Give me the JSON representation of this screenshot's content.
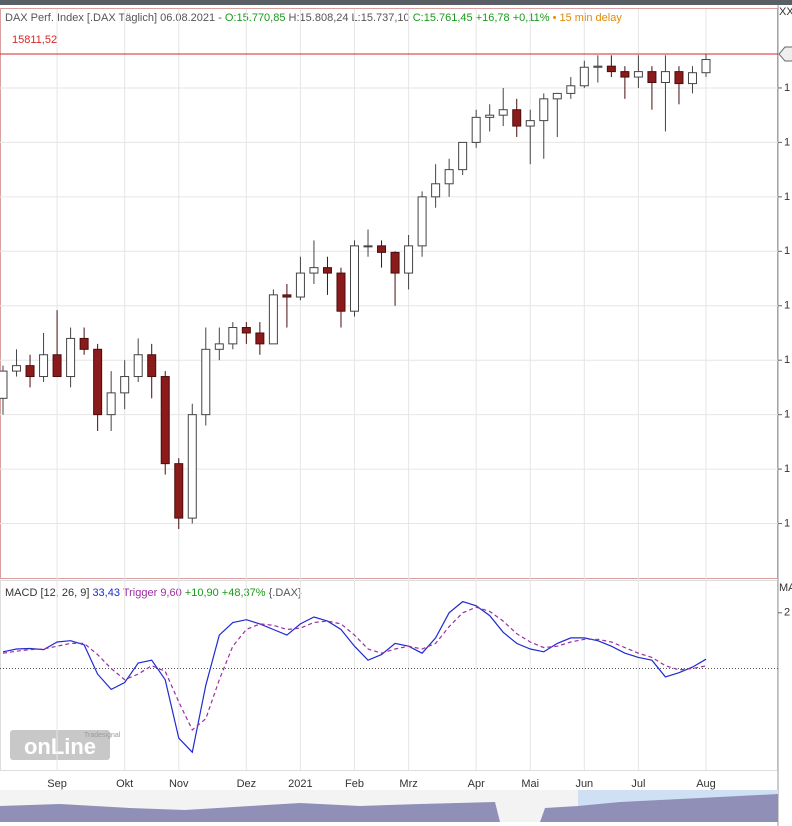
{
  "header": {
    "title": "DAX Perf. Index [.DAX Täglich] 06.08.2021 -",
    "open": "O:15.770,85",
    "high_low": "H:15.808,24 L:15.737,10",
    "close": "C:15.761,45 +16,78 +0,11%",
    "delay": "• 15 min delay",
    "corner": "XX",
    "corner2": "MA"
  },
  "logo": {
    "brand": "Tradesignal",
    "name": "onLine"
  },
  "chart_data": [
    {
      "type": "candlestick",
      "categories": [
        null,
        null,
        null,
        null,
        "Sep",
        null,
        null,
        null,
        null,
        "Okt",
        null,
        null,
        null,
        "Nov",
        null,
        null,
        null,
        null,
        "Dez",
        null,
        null,
        null,
        "2021",
        null,
        null,
        null,
        "Feb",
        null,
        null,
        null,
        "Mrz",
        null,
        null,
        null,
        null,
        "Apr",
        null,
        null,
        null,
        "Mai",
        null,
        null,
        null,
        "Jun",
        null,
        null,
        null,
        "Jul",
        null,
        null,
        null,
        null,
        "Aug"
      ],
      "open": [
        12650,
        12900,
        12950,
        12850,
        13050,
        12850,
        13200,
        13100,
        12500,
        12700,
        12850,
        13050,
        12850,
        12050,
        11550,
        12500,
        13100,
        13150,
        13300,
        13250,
        13150,
        13600,
        13580,
        13800,
        13850,
        13800,
        13450,
        14050,
        14050,
        13990,
        13800,
        14050,
        14500,
        14620,
        14750,
        15000,
        15230,
        15250,
        15300,
        15150,
        15200,
        15400,
        15450,
        15520,
        15690,
        15700,
        15650,
        15600,
        15650,
        15550,
        15650,
        15540,
        15640
      ],
      "high": [
        12950,
        13100,
        13050,
        13250,
        13460,
        13300,
        13300,
        13150,
        12900,
        13000,
        13200,
        13150,
        12900,
        12100,
        12600,
        13300,
        13300,
        13350,
        13350,
        13350,
        13650,
        13700,
        13950,
        14100,
        13950,
        13850,
        14100,
        14200,
        14100,
        14000,
        14150,
        14550,
        14800,
        14850,
        15000,
        15300,
        15350,
        15500,
        15400,
        15300,
        15450,
        15450,
        15600,
        15750,
        15800,
        15800,
        15700,
        15800,
        15700,
        15800,
        15700,
        15700,
        15810
      ],
      "low": [
        12500,
        12850,
        12750,
        12800,
        12900,
        12750,
        13050,
        12350,
        12350,
        12550,
        12800,
        12650,
        11950,
        11450,
        11500,
        12400,
        13000,
        13100,
        13150,
        13050,
        13150,
        13300,
        13550,
        13700,
        13600,
        13300,
        13400,
        13950,
        13850,
        13500,
        13650,
        13950,
        14400,
        14500,
        14700,
        14950,
        15100,
        15150,
        15050,
        14800,
        14850,
        15050,
        15400,
        15500,
        15550,
        15600,
        15400,
        15500,
        15300,
        15100,
        15350,
        15450,
        15600
      ],
      "close": [
        12900,
        12950,
        12850,
        13050,
        12850,
        13200,
        13100,
        12500,
        12700,
        12850,
        13050,
        12850,
        12050,
        11550,
        12500,
        13100,
        13150,
        13300,
        13250,
        13150,
        13600,
        13580,
        13800,
        13850,
        13800,
        13450,
        14050,
        14050,
        13990,
        13800,
        14050,
        14500,
        14620,
        14750,
        15000,
        15230,
        15250,
        15300,
        15150,
        15200,
        15400,
        15450,
        15520,
        15690,
        15700,
        15650,
        15600,
        15650,
        15550,
        15650,
        15540,
        15640,
        15761
      ],
      "up_color": "#ffffff",
      "down_color": "#8b1a1a",
      "ylim": [
        11000,
        16225
      ],
      "yticks": [
        {
          "value": 11500,
          "label": "1"
        },
        {
          "value": 12000,
          "label": "1"
        },
        {
          "value": 12500,
          "label": "1"
        },
        {
          "value": 13000,
          "label": "1"
        },
        {
          "value": 13500,
          "label": "1"
        },
        {
          "value": 14000,
          "label": "1"
        },
        {
          "value": 14500,
          "label": "1"
        },
        {
          "value": 15000,
          "label": "1"
        },
        {
          "value": 15500,
          "label": "1"
        }
      ],
      "grid": true,
      "price_line": {
        "value": 15811.52,
        "label": "15811,52",
        "color": "#d62728"
      }
    },
    {
      "type": "line",
      "legend": [
        "MACD [12, 26, 9]",
        "33,43",
        "Trigger 9,60",
        "+10,90 +48,37%",
        "{.DAX}"
      ],
      "series": [
        {
          "color": "#1f2bd0",
          "dash": false,
          "values": [
            60,
            70,
            72,
            68,
            95,
            100,
            85,
            -20,
            -75,
            -50,
            20,
            30,
            -40,
            -250,
            -300,
            -60,
            120,
            165,
            175,
            160,
            140,
            120,
            160,
            185,
            170,
            140,
            80,
            30,
            50,
            90,
            80,
            55,
            110,
            200,
            240,
            225,
            190,
            130,
            90,
            70,
            60,
            90,
            110,
            110,
            100,
            80,
            55,
            40,
            30,
            -30,
            -15,
            5,
            33.43
          ]
        },
        {
          "color": "#9b2fa3",
          "dash": true,
          "values": [
            55,
            62,
            68,
            70,
            80,
            90,
            90,
            50,
            0,
            -40,
            -20,
            10,
            -10,
            -120,
            -220,
            -180,
            -40,
            80,
            140,
            160,
            155,
            140,
            145,
            165,
            170,
            160,
            120,
            70,
            55,
            70,
            80,
            70,
            90,
            150,
            200,
            220,
            205,
            170,
            125,
            95,
            75,
            80,
            95,
            105,
            105,
            95,
            75,
            55,
            40,
            10,
            -5,
            0,
            9.6
          ]
        }
      ],
      "ylim": [
        -364,
        314
      ],
      "yticks": [
        {
          "value": 200,
          "label": "2"
        }
      ]
    }
  ]
}
